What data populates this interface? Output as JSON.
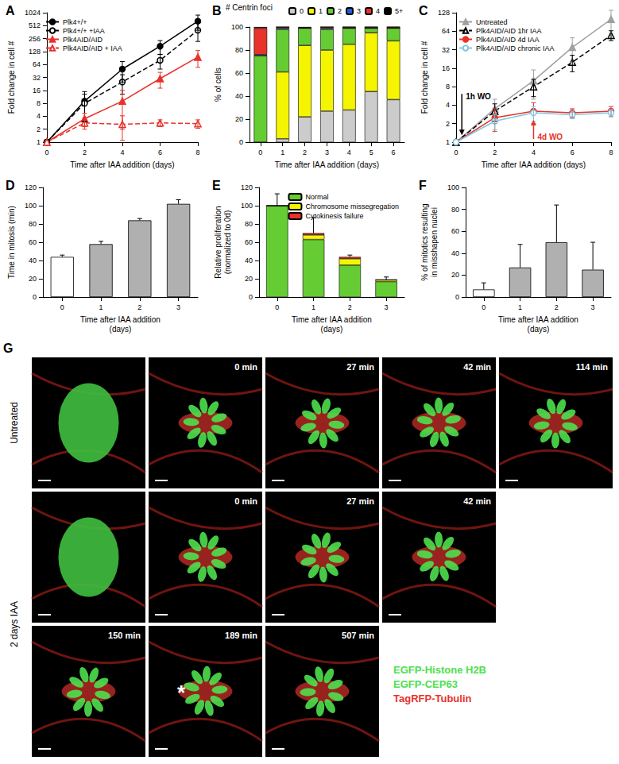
{
  "chart_data": [
    {
      "type": "line",
      "title": "A",
      "log": "y",
      "grid": false,
      "legend": "top-left",
      "x_label": "Time after IAA addition (days)",
      "y_label": "Fold change in cell #",
      "xlim": [
        0,
        8
      ],
      "xticks": [
        0,
        2,
        4,
        6,
        8
      ],
      "ylim": [
        1,
        1024
      ],
      "yticks": [
        1,
        2,
        4,
        8,
        16,
        32,
        64,
        128,
        256,
        512,
        1024
      ],
      "x": [
        0,
        2,
        4,
        6,
        8
      ],
      "series": [
        {
          "name": "Plk4+/+",
          "color": "#000000",
          "marker": "circle",
          "line_style": "solid",
          "values": [
            1,
            9,
            50,
            170,
            650
          ],
          "errors": [
            0,
            6,
            25,
            60,
            250
          ]
        },
        {
          "name": "Plk4+/+ +IAA",
          "color": "#000000",
          "marker": "circle-open",
          "line_style": "dashed",
          "values": [
            1,
            8,
            25,
            80,
            400
          ],
          "errors": [
            0,
            5,
            12,
            30,
            180
          ]
        },
        {
          "name": "Plk4AID/AID",
          "color": "#e8322b",
          "marker": "triangle",
          "line_style": "solid",
          "values": [
            1,
            3.5,
            9,
            30,
            95
          ],
          "errors": [
            0,
            1.2,
            7,
            12,
            40
          ]
        },
        {
          "name": "Plk4AID/AID + IAA",
          "color": "#e8322b",
          "marker": "triangle-open",
          "line_style": "dashed",
          "values": [
            1,
            2.8,
            2.6,
            2.8,
            2.7
          ],
          "errors": [
            0,
            0.8,
            1.5,
            0.5,
            0.6
          ]
        }
      ]
    },
    {
      "type": "bar",
      "title": "B",
      "stacked": true,
      "grid": false,
      "legend": "top",
      "legend_title": "# Centrin foci",
      "x_label": "Time after IAA addition (days)",
      "y_label": "% of cells",
      "categories": [
        "0",
        "1",
        "2",
        "3",
        "4",
        "5",
        "6"
      ],
      "ylim": [
        0,
        100
      ],
      "yticks": [
        0,
        20,
        40,
        60,
        80,
        100
      ],
      "series": [
        {
          "name": "0",
          "color": "#cccccc",
          "values": [
            0,
            3,
            22,
            27,
            28,
            44,
            37
          ]
        },
        {
          "name": "1",
          "color": "#f5f500",
          "values": [
            0,
            58,
            62,
            53,
            57,
            51,
            51
          ]
        },
        {
          "name": "2",
          "color": "#66cc33",
          "values": [
            75,
            37,
            15,
            18,
            14,
            4,
            11
          ]
        },
        {
          "name": "3",
          "color": "#1f5fcc",
          "values": [
            1,
            1,
            0,
            1,
            0,
            0,
            0
          ]
        },
        {
          "name": "4",
          "color": "#e8322b",
          "values": [
            23,
            1,
            0.5,
            1,
            1,
            1,
            1
          ]
        },
        {
          "name": "5+",
          "color": "#000000",
          "values": [
            1,
            0,
            0.5,
            0,
            0,
            0,
            0
          ]
        }
      ]
    },
    {
      "type": "line",
      "title": "C",
      "log": "y",
      "grid": false,
      "legend": "top-left",
      "x_label": "Time after IAA addition (days)",
      "y_label": "Fold change in cell #",
      "xlim": [
        0,
        8
      ],
      "xticks": [
        0,
        2,
        4,
        6,
        8
      ],
      "ylim": [
        1,
        128
      ],
      "yticks": [
        1,
        2,
        4,
        8,
        16,
        32,
        64,
        128
      ],
      "x": [
        0,
        2,
        4,
        6,
        8
      ],
      "series": [
        {
          "name": "Untreated",
          "color": "#a0a0a0",
          "marker": "triangle",
          "line_style": "solid",
          "values": [
            1,
            3.5,
            10,
            35,
            100
          ],
          "errors": [
            0,
            1.5,
            5,
            15,
            40
          ]
        },
        {
          "name": "Plk4AID/AID 1hr IAA",
          "color": "#000000",
          "marker": "triangle-open",
          "line_style": "dashed",
          "values": [
            1,
            3.2,
            8,
            20,
            55
          ],
          "errors": [
            0,
            1,
            2.5,
            6,
            10
          ]
        },
        {
          "name": "Plk4AID/AID 4d IAA",
          "color": "#e8322b",
          "marker": "circle",
          "line_style": "solid",
          "values": [
            1,
            2.5,
            3.2,
            3,
            3.2
          ],
          "errors": [
            0,
            1,
            1.2,
            0.5,
            0.6
          ]
        },
        {
          "name": "Plk4AID/AID chronic IAA",
          "color": "#7ec8e3",
          "marker": "circle-open",
          "line_style": "solid",
          "values": [
            1,
            2.2,
            3,
            2.8,
            3
          ],
          "errors": [
            0,
            0.6,
            0.8,
            0.4,
            0.4
          ]
        }
      ],
      "annotations": [
        {
          "text": "1h WO",
          "x": 0.3,
          "y": 1.3,
          "color": "#000000"
        },
        {
          "text": "4d WO",
          "x": 4,
          "y": 2.3,
          "color": "#e8322b"
        }
      ]
    },
    {
      "type": "bar",
      "title": "D",
      "grid": false,
      "x_label": "Time after IAA addition\n(days)",
      "y_label": "Time in mitosis (min)",
      "categories": [
        "0",
        "1",
        "2",
        "3"
      ],
      "values": [
        44,
        58,
        84,
        102
      ],
      "errors": [
        2,
        3,
        2,
        4.5
      ],
      "colors": [
        "#ffffff",
        "#b0b0b0",
        "#b0b0b0",
        "#b0b0b0"
      ],
      "ylim": [
        0,
        120
      ],
      "yticks": [
        0,
        20,
        40,
        60,
        80,
        100,
        120
      ]
    },
    {
      "type": "bar",
      "title": "E",
      "stacked": true,
      "grid": false,
      "legend": "top-right",
      "x_label": "Time after IAA addition\n(days)",
      "y_label": "Relative proliferation\n(normalized to 0d)",
      "categories": [
        "0",
        "1",
        "2",
        "3"
      ],
      "ylim": [
        0,
        120
      ],
      "yticks": [
        0,
        20,
        40,
        60,
        80,
        100,
        120
      ],
      "errors": [
        13,
        17,
        2,
        3
      ],
      "series": [
        {
          "name": "Normal",
          "color": "#66cc33",
          "values": [
            100,
            63,
            35,
            17
          ]
        },
        {
          "name": "Chromosome missegregation",
          "color": "#f5f500",
          "values": [
            0,
            5,
            7,
            2
          ]
        },
        {
          "name": "Cytokinesis failure",
          "color": "#e8322b",
          "values": [
            0,
            2,
            2,
            0
          ]
        }
      ]
    },
    {
      "type": "bar",
      "title": "F",
      "grid": false,
      "x_label": "Time after IAA addition\n(days)",
      "y_label": "% of mitotics resulting\nin misshapen nuclei",
      "categories": [
        "0",
        "1",
        "2",
        "3"
      ],
      "values": [
        7,
        27,
        50,
        25
      ],
      "errors": [
        6,
        21,
        34,
        25
      ],
      "colors": [
        "#ffffff",
        "#b0b0b0",
        "#b0b0b0",
        "#b0b0b0"
      ],
      "ylim": [
        0,
        100
      ],
      "yticks": [
        0,
        20,
        40,
        60,
        80,
        100
      ]
    }
  ],
  "image_panel": {
    "title": "G",
    "rows": [
      {
        "label": "Untreated",
        "frames": [
          null,
          "0 min",
          "27 min",
          "42 min",
          "114 min"
        ]
      },
      {
        "label": "2 days IAA",
        "frames": [
          null,
          "0 min",
          "27 min",
          "42 min",
          "150 min",
          "189 min",
          "507 min"
        ]
      }
    ],
    "annotation": {
      "row": 1,
      "frame": 5,
      "text": "*"
    },
    "channels": [
      {
        "text": "EGFP-Histone H2B",
        "color": "#4ee04e"
      },
      {
        "text": "EGFP-CEP63",
        "color": "#4ee04e"
      },
      {
        "text": "TagRFP-Tubulin",
        "color": "#e8322b"
      }
    ]
  }
}
